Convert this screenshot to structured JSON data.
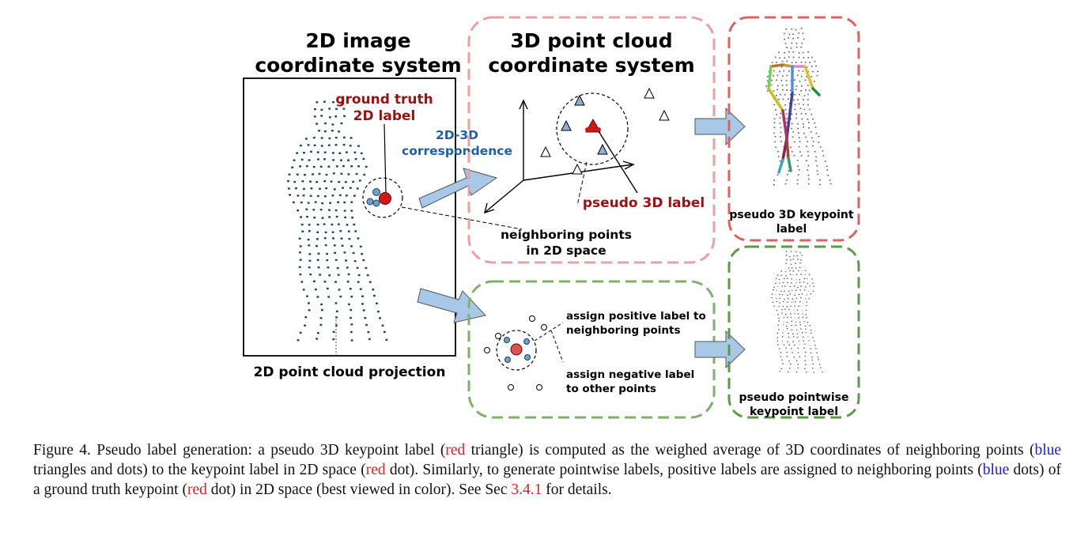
{
  "colors": {
    "dark_red": "#9b1010",
    "blue_text": "#1f5fa8",
    "pink_dashed": "#e8a0a0",
    "red_dashed": "#e06060",
    "green_dashed": "#7fb069",
    "dark_green_dashed": "#5a9a48",
    "arrow_fill": "#a8c8e8",
    "point_color": "#1e4a4a",
    "caption_red": "#e02020",
    "caption_blue": "#1a1ae6"
  },
  "panel_2d": {
    "title_line1": "2D image",
    "title_line2": "coordinate system",
    "gt_label_line1": "ground truth",
    "gt_label_line2": "2D label",
    "correspondence_line1": "2D-3D",
    "correspondence_line2": "correspondence",
    "neighbor_line1": "neighboring points",
    "neighbor_line2": "in 2D space",
    "projection_label": "2D point cloud projection"
  },
  "panel_3d": {
    "title_line1": "3D point cloud",
    "title_line2": "coordinate system",
    "pseudo_label": "pseudo 3D label"
  },
  "panel_keypoint": {
    "label_line1": "pseudo 3D keypoint",
    "label_line2": "label"
  },
  "panel_assign": {
    "pos_line1": "assign positive label to",
    "pos_line2": "neighboring points",
    "neg_line1": "assign negative label",
    "neg_line2": "to other points"
  },
  "panel_pointwise": {
    "label_line1": "pseudo pointwise",
    "label_line2": "keypoint label"
  },
  "caption": {
    "p1": "Figure 4. Pseudo label generation: a pseudo 3D keypoint label (",
    "red1": "red",
    "p2": " triangle) is computed as the weighed average of 3D coordinates of neighboring points (",
    "blue1": "blue",
    "p3": " triangles and dots) to the keypoint label in 2D space (",
    "red2": "red",
    "p4": " dot). Similarly, to generate pointwise labels, positive labels are assigned to neighboring points (",
    "blue2": "blue",
    "p5": " dots) of a ground truth keypoint (",
    "red3": "red",
    "p6": " dot) in 2D space (best viewed in color). See Sec ",
    "ref": "3.4.1",
    "p7": " for details."
  }
}
